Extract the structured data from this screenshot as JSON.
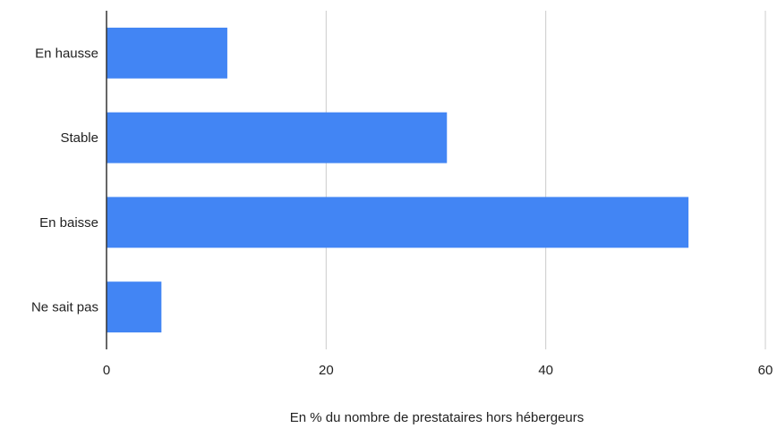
{
  "chart_data": {
    "type": "bar",
    "orientation": "horizontal",
    "categories": [
      "En hausse",
      "Stable",
      "En baisse",
      "Ne sait pas"
    ],
    "values": [
      11,
      31,
      53,
      5
    ],
    "xlabel": "En % du nombre de prestataires hors hébergeurs",
    "ylabel": "",
    "xlim": [
      0,
      60
    ],
    "xticks": [
      0,
      20,
      40,
      60
    ],
    "grid": "vertical",
    "legend": "none",
    "bar_color": "#4285f4",
    "grid_color": "#cccccc",
    "axis_color": "#333333"
  }
}
